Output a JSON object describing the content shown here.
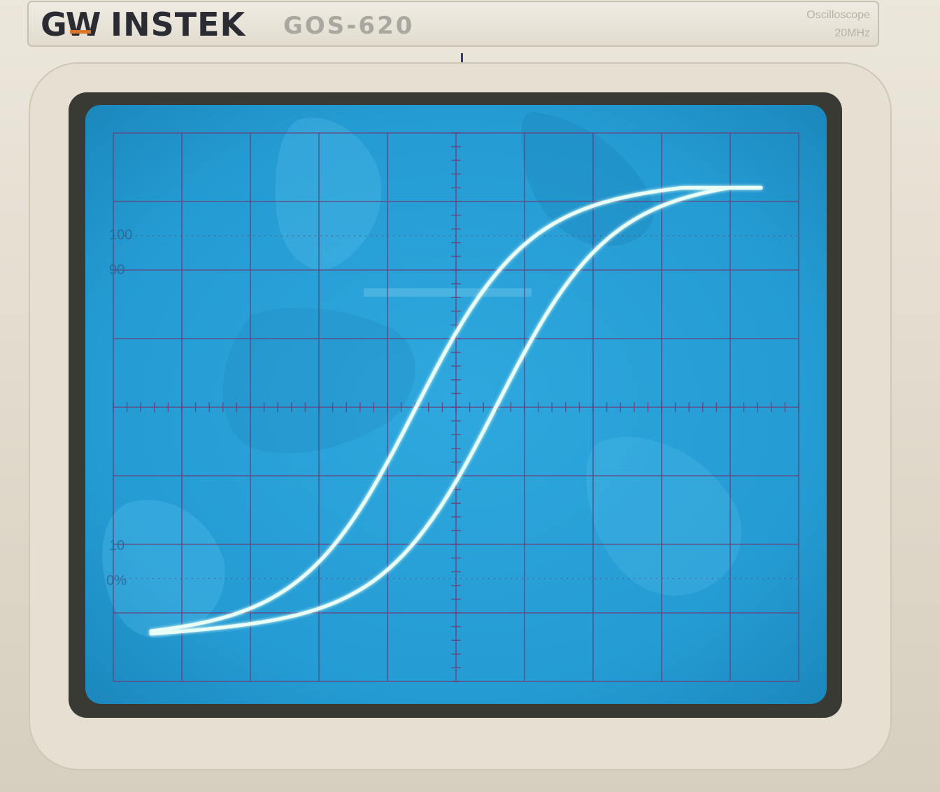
{
  "brand": {
    "logo_mark": "GW",
    "name": "INSTEK",
    "model": "GOS-620",
    "product_type": "Oscilloscope",
    "bandwidth": "20MHz"
  },
  "screen": {
    "labels": {
      "rise_top": "100",
      "rise_upper": "90",
      "rise_lower": "10",
      "rise_zero": "0%"
    },
    "grid": {
      "divisions_x": 10,
      "divisions_y": 8
    },
    "colors": {
      "crt_blue": "#2a9fd6",
      "grid_line": "#6a3f7a",
      "trace": "#e9fff6",
      "trace_glow": "#8ff5d8",
      "bezel": "#e3ddcf",
      "panel": "#ebe6da"
    }
  },
  "trace": {
    "description_type": "hysteresis-loop",
    "x_range_div": [
      -4.45,
      4.45
    ],
    "y_range_div": [
      -3.35,
      3.2
    ]
  }
}
